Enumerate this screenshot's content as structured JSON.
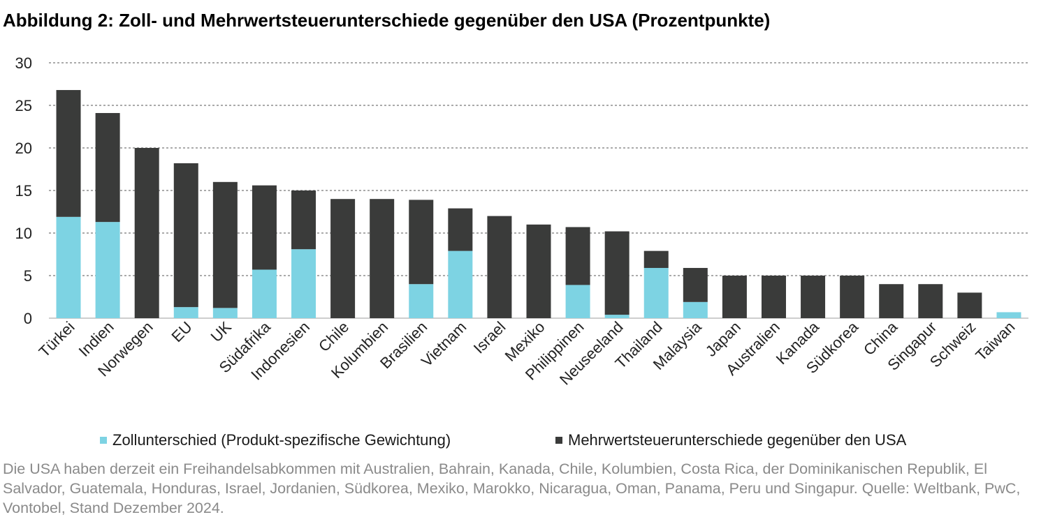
{
  "title": "Abbildung 2: Zoll- und Mehrwertsteuerunterschiede gegenüber den USA (Prozentpunkte)",
  "footnote": "Die USA haben derzeit ein Freihandelsabkommen mit Australien, Bahrain, Kanada, Chile, Kolumbien, Costa Rica, der Dominikanischen Republik, El Salvador, Guatemala, Honduras, Israel, Jordanien, Südkorea, Mexiko, Marokko, Nicaragua, Oman, Panama, Peru und Singapur. Quelle: Weltbank, PwC, Vontobel, Stand Dezember 2024.",
  "chart_data": {
    "type": "bar",
    "stacked": true,
    "categories": [
      "Türkei",
      "Indien",
      "Norwegen",
      "EU",
      "UK",
      "Südafrika",
      "Indonesien",
      "Chile",
      "Kolumbien",
      "Brasilien",
      "Vietnam",
      "Israel",
      "Mexiko",
      "Philippinen",
      "Neuseeland",
      "Thailand",
      "Malaysia",
      "Japan",
      "Australien",
      "Kanada",
      "Südkorea",
      "China",
      "Singapur",
      "Schweiz",
      "Taiwan"
    ],
    "series": [
      {
        "name": "Zollunterschied (Produkt-spezifische Gewichtung)",
        "color": "#7dd3e3",
        "values": [
          11.9,
          11.3,
          0,
          1.3,
          1.2,
          5.7,
          8.1,
          0,
          0,
          4.0,
          7.9,
          0,
          0,
          3.9,
          0.4,
          5.9,
          1.9,
          0,
          0,
          0,
          0,
          0,
          0,
          0,
          0.7
        ]
      },
      {
        "name": "Mehrwertsteuerunterschiede gegenüber den USA",
        "color": "#3a3b3a",
        "values": [
          14.9,
          12.8,
          20.0,
          16.9,
          14.8,
          9.9,
          6.9,
          14.0,
          14.0,
          9.9,
          5.0,
          12.0,
          11.0,
          6.8,
          9.8,
          2.0,
          4.0,
          5.0,
          5.0,
          5.0,
          5.0,
          4.0,
          4.0,
          3.0,
          0
        ]
      }
    ],
    "ylim": [
      0,
      30
    ],
    "yticks": [
      0,
      5,
      10,
      15,
      20,
      25,
      30
    ],
    "ytick_labels": [
      "0",
      "5",
      "10",
      "15",
      "20",
      "25",
      "30"
    ],
    "grid": true,
    "legend": "bottom"
  }
}
